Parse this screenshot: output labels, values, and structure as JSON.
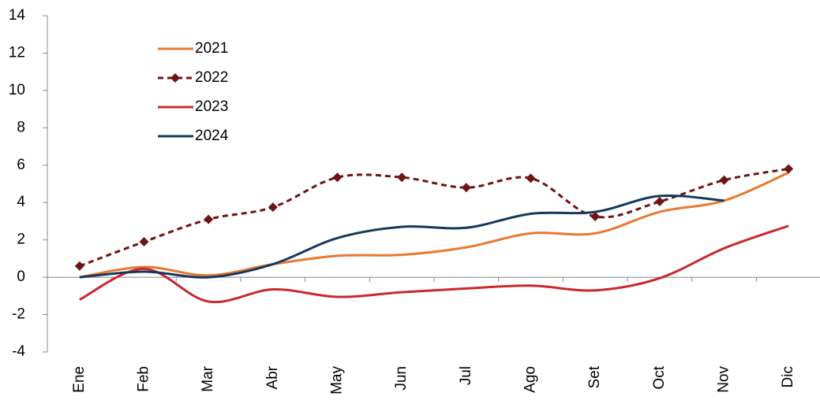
{
  "chart_data": {
    "type": "line",
    "categories": [
      "Ene",
      "Feb",
      "Mar",
      "Abr",
      "May",
      "Jun",
      "Jul",
      "Ago",
      "Set",
      "Oct",
      "Nov",
      "Dic"
    ],
    "series": [
      {
        "name": "2021",
        "color": "#e8792f",
        "values": [
          0,
          0.55,
          0.1,
          0.7,
          1.15,
          1.2,
          1.6,
          2.35,
          2.35,
          3.5,
          4.1,
          5.6
        ]
      },
      {
        "name": "2022",
        "color": "#6e1414",
        "dash": true,
        "marker": "diamond",
        "values": [
          0.6,
          1.9,
          3.1,
          3.75,
          5.35,
          5.35,
          4.8,
          5.3,
          3.25,
          4.05,
          5.2,
          5.8
        ]
      },
      {
        "name": "2023",
        "color": "#c9282e",
        "values": [
          -1.2,
          0.45,
          -1.3,
          -0.65,
          -1.05,
          -0.8,
          -0.6,
          -0.45,
          -0.7,
          -0.05,
          1.55,
          2.75
        ]
      },
      {
        "name": "2024",
        "color": "#17375e",
        "values": [
          0,
          0.3,
          0,
          0.7,
          2.1,
          2.7,
          2.65,
          3.4,
          3.5,
          4.35,
          4.1,
          null
        ]
      }
    ],
    "ylim": [
      -4,
      14
    ],
    "yticks": [
      -4,
      -2,
      0,
      2,
      4,
      6,
      8,
      10,
      12,
      14
    ],
    "legend": "upper left"
  }
}
